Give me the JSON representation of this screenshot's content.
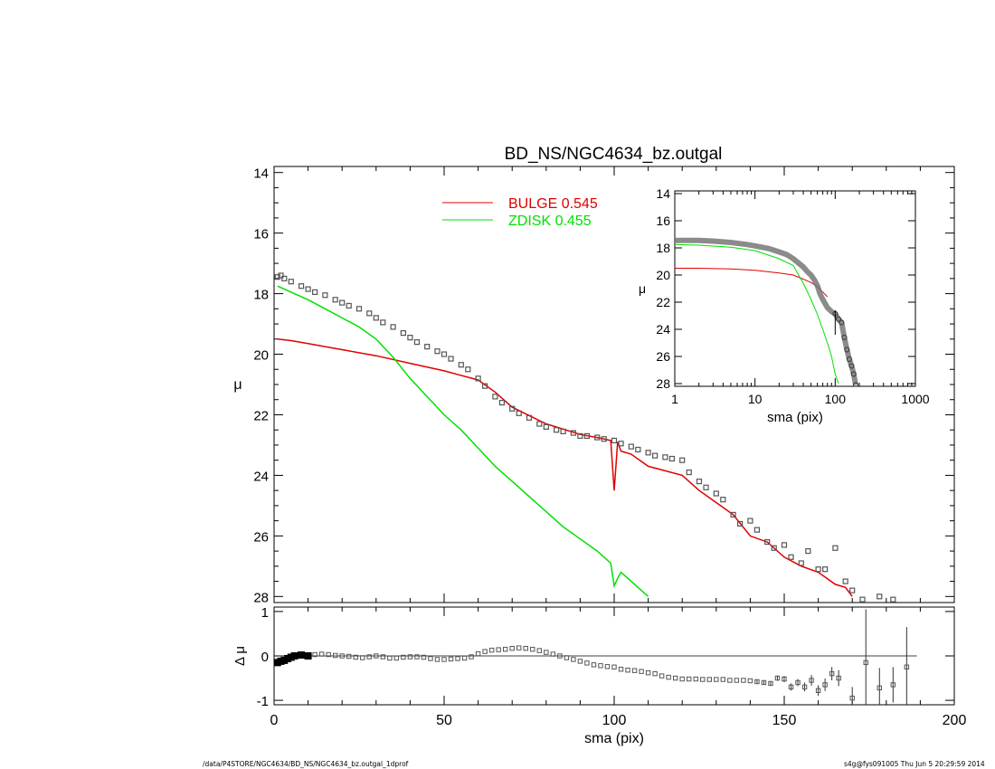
{
  "title": "BD_NS/NGC4634_bz.outgal",
  "footer": {
    "left": "/data/P4STORE/NGC4634/BD_NS/NGC4634_bz.outgal_1dprof",
    "right": "s4g@fys091005  Thu Jun  5 20:29:59 2014"
  },
  "colors": {
    "bulge": "#e00000",
    "zdisk": "#00e000",
    "data": "#555555",
    "axes": "#000000"
  },
  "chart_data": [
    {
      "id": "main",
      "type": "line",
      "title": "BD_NS/NGC4634_bz.outgal",
      "xlabel": "",
      "ylabel": "μ",
      "xlim": [
        0,
        200
      ],
      "ylim": [
        28.2,
        13.8
      ],
      "yticks": [
        14,
        16,
        18,
        20,
        22,
        24,
        26,
        28
      ],
      "legend": {
        "position": "top-center",
        "entries": [
          {
            "name": "BULGE",
            "value": "0.545",
            "color": "#e00000"
          },
          {
            "name": "ZDISK",
            "value": "0.455",
            "color": "#00e000"
          }
        ]
      },
      "series": [
        {
          "name": "BULGE",
          "color": "#e00000",
          "x": [
            1,
            5,
            10,
            20,
            30,
            40,
            50,
            60,
            65,
            70,
            80,
            90,
            95,
            99,
            100,
            101,
            102,
            105,
            110,
            115,
            120,
            125,
            130,
            135,
            140,
            145,
            150,
            155,
            160,
            165,
            168,
            170
          ],
          "y": [
            19.5,
            19.55,
            19.65,
            19.85,
            20.05,
            20.3,
            20.55,
            20.85,
            21.25,
            21.75,
            22.3,
            22.65,
            22.75,
            22.85,
            24.5,
            22.9,
            23.2,
            23.3,
            23.7,
            23.85,
            24.0,
            24.5,
            24.9,
            25.3,
            26.0,
            26.2,
            26.7,
            27.0,
            27.2,
            27.6,
            27.7,
            28.0
          ]
        },
        {
          "name": "ZDISK",
          "color": "#00e000",
          "x": [
            1,
            5,
            10,
            15,
            20,
            25,
            30,
            35,
            40,
            45,
            50,
            55,
            60,
            65,
            70,
            75,
            80,
            85,
            90,
            95,
            99,
            100,
            101,
            102,
            105,
            110
          ],
          "y": [
            17.75,
            17.95,
            18.2,
            18.5,
            18.8,
            19.1,
            19.5,
            20.1,
            20.8,
            21.4,
            22.0,
            22.5,
            23.1,
            23.7,
            24.2,
            24.7,
            25.2,
            25.7,
            26.1,
            26.5,
            26.9,
            27.65,
            27.4,
            27.2,
            27.5,
            28.0
          ]
        },
        {
          "name": "data",
          "color": "#555555",
          "marker": "square",
          "x": [
            1,
            2,
            3,
            5,
            8,
            10,
            12,
            15,
            18,
            20,
            22,
            25,
            28,
            30,
            32,
            35,
            38,
            40,
            42,
            45,
            48,
            50,
            52,
            55,
            57,
            60,
            62,
            65,
            67,
            70,
            72,
            75,
            78,
            80,
            83,
            85,
            88,
            90,
            92,
            95,
            97,
            100,
            102,
            105,
            107,
            110,
            112,
            115,
            117,
            120,
            122,
            125,
            127,
            130,
            132,
            135,
            137,
            140,
            142,
            145,
            147,
            150,
            152,
            155,
            157,
            160,
            162,
            165,
            168,
            170,
            173,
            178,
            182
          ],
          "y": [
            17.45,
            17.4,
            17.5,
            17.6,
            17.75,
            17.85,
            17.95,
            18.05,
            18.2,
            18.3,
            18.4,
            18.5,
            18.65,
            18.8,
            18.95,
            19.1,
            19.3,
            19.45,
            19.6,
            19.75,
            19.9,
            20.0,
            20.15,
            20.35,
            20.5,
            20.8,
            21.05,
            21.4,
            21.6,
            21.8,
            21.95,
            22.1,
            22.3,
            22.4,
            22.5,
            22.55,
            22.6,
            22.7,
            22.7,
            22.75,
            22.8,
            22.85,
            22.95,
            23.05,
            23.15,
            23.25,
            23.35,
            23.4,
            23.45,
            23.5,
            23.9,
            24.2,
            24.4,
            24.6,
            24.8,
            25.3,
            25.6,
            25.5,
            25.8,
            26.2,
            26.4,
            26.3,
            26.7,
            26.9,
            26.5,
            27.1,
            27.1,
            26.4,
            27.5,
            27.8,
            28.1,
            28.0,
            28.1
          ]
        }
      ]
    },
    {
      "id": "residual",
      "type": "scatter",
      "xlabel": "sma (pix)",
      "ylabel": "Δ μ",
      "xlim": [
        0,
        200
      ],
      "ylim": [
        -1.1,
        1.1
      ],
      "xticks": [
        0,
        50,
        100,
        150,
        200
      ],
      "yticks": [
        -1,
        0,
        1
      ],
      "series": [
        {
          "name": "residual",
          "color": "#555555",
          "x": [
            1,
            2,
            3,
            4,
            5,
            6,
            8,
            10,
            12,
            14,
            16,
            18,
            20,
            22,
            24,
            26,
            28,
            30,
            32,
            34,
            36,
            38,
            40,
            42,
            44,
            46,
            48,
            50,
            52,
            54,
            56,
            58,
            60,
            62,
            64,
            66,
            68,
            70,
            72,
            74,
            76,
            78,
            80,
            82,
            84,
            86,
            88,
            90,
            92,
            94,
            96,
            98,
            100,
            102,
            104,
            106,
            108,
            110,
            112,
            114,
            116,
            118,
            120,
            122,
            124,
            126,
            128,
            130,
            132,
            134,
            136,
            138,
            140,
            142,
            144,
            146,
            148,
            150,
            152,
            154,
            156,
            158,
            160,
            162,
            164,
            166,
            170,
            174,
            178,
            182,
            186
          ],
          "y": [
            -0.15,
            -0.12,
            -0.1,
            -0.06,
            -0.03,
            0.0,
            0.02,
            0.0,
            0.03,
            0.04,
            0.03,
            0.01,
            0.0,
            -0.01,
            -0.03,
            -0.04,
            -0.02,
            0.0,
            -0.02,
            -0.05,
            -0.05,
            -0.03,
            -0.02,
            -0.02,
            -0.03,
            -0.06,
            -0.08,
            -0.08,
            -0.07,
            -0.06,
            -0.05,
            -0.02,
            0.05,
            0.1,
            0.13,
            0.14,
            0.15,
            0.17,
            0.18,
            0.17,
            0.15,
            0.12,
            0.08,
            0.04,
            0.0,
            -0.04,
            -0.08,
            -0.12,
            -0.16,
            -0.2,
            -0.22,
            -0.24,
            -0.25,
            -0.3,
            -0.32,
            -0.33,
            -0.35,
            -0.38,
            -0.4,
            -0.45,
            -0.48,
            -0.5,
            -0.52,
            -0.52,
            -0.52,
            -0.53,
            -0.53,
            -0.53,
            -0.53,
            -0.55,
            -0.55,
            -0.55,
            -0.56,
            -0.58,
            -0.6,
            -0.62,
            -0.5,
            -0.52,
            -0.7,
            -0.6,
            -0.7,
            -0.55,
            -0.78,
            -0.65,
            -0.4,
            -0.5,
            -0.95,
            -0.15,
            -0.72,
            -0.65,
            -0.25
          ],
          "yerr": [
            0.02,
            0.02,
            0.02,
            0.02,
            0.02,
            0.02,
            0.02,
            0.02,
            0.02,
            0.02,
            0.02,
            0.02,
            0.02,
            0.02,
            0.02,
            0.02,
            0.02,
            0.02,
            0.02,
            0.02,
            0.02,
            0.02,
            0.02,
            0.02,
            0.02,
            0.02,
            0.02,
            0.02,
            0.02,
            0.02,
            0.02,
            0.02,
            0.02,
            0.02,
            0.02,
            0.02,
            0.02,
            0.02,
            0.02,
            0.02,
            0.02,
            0.02,
            0.02,
            0.02,
            0.02,
            0.02,
            0.02,
            0.02,
            0.02,
            0.02,
            0.02,
            0.02,
            0.02,
            0.02,
            0.02,
            0.02,
            0.02,
            0.02,
            0.02,
            0.02,
            0.02,
            0.02,
            0.02,
            0.02,
            0.02,
            0.02,
            0.02,
            0.02,
            0.02,
            0.02,
            0.03,
            0.03,
            0.03,
            0.04,
            0.05,
            0.05,
            0.06,
            0.07,
            0.08,
            0.08,
            0.1,
            0.12,
            0.12,
            0.14,
            0.15,
            0.18,
            0.25,
            1.2,
            0.45,
            0.4,
            0.9
          ]
        }
      ]
    },
    {
      "id": "inset",
      "type": "line",
      "xlabel": "sma (pix)",
      "ylabel": "μ",
      "xscale": "log",
      "xlim": [
        1,
        1000
      ],
      "ylim": [
        28.2,
        13.8
      ],
      "xticks": [
        1,
        10,
        100,
        1000
      ],
      "yticks": [
        14,
        16,
        18,
        20,
        22,
        24,
        26,
        28
      ],
      "series": [
        {
          "name": "BULGE",
          "color": "#e00000",
          "x": [
            1,
            2,
            5,
            10,
            20,
            30,
            40,
            50,
            60,
            70,
            80
          ],
          "y": [
            19.5,
            19.5,
            19.55,
            19.65,
            19.85,
            20.0,
            20.3,
            20.55,
            20.85,
            21.25,
            21.6
          ]
        },
        {
          "name": "ZDISK",
          "color": "#00e000",
          "x": [
            1,
            2,
            5,
            10,
            20,
            30,
            40,
            50,
            60,
            70,
            80,
            90,
            100,
            110
          ],
          "y": [
            17.75,
            17.8,
            17.95,
            18.2,
            18.8,
            19.3,
            20.6,
            21.8,
            22.9,
            24.0,
            25.0,
            26.0,
            27.3,
            28.0
          ]
        },
        {
          "name": "data",
          "color": "#555555",
          "x": [
            1,
            2,
            3,
            5,
            8,
            10,
            15,
            20,
            25,
            30,
            40,
            45,
            50,
            55,
            60,
            65,
            70,
            80,
            90,
            100,
            110,
            120,
            130,
            140,
            150,
            160,
            170,
            180
          ],
          "y": [
            17.45,
            17.45,
            17.5,
            17.6,
            17.75,
            17.85,
            18.05,
            18.3,
            18.5,
            18.8,
            19.4,
            19.75,
            20.0,
            20.35,
            20.8,
            21.4,
            21.8,
            22.4,
            22.7,
            22.85,
            23.25,
            23.5,
            24.6,
            25.5,
            26.2,
            26.7,
            27.3,
            28.1
          ]
        }
      ]
    }
  ]
}
